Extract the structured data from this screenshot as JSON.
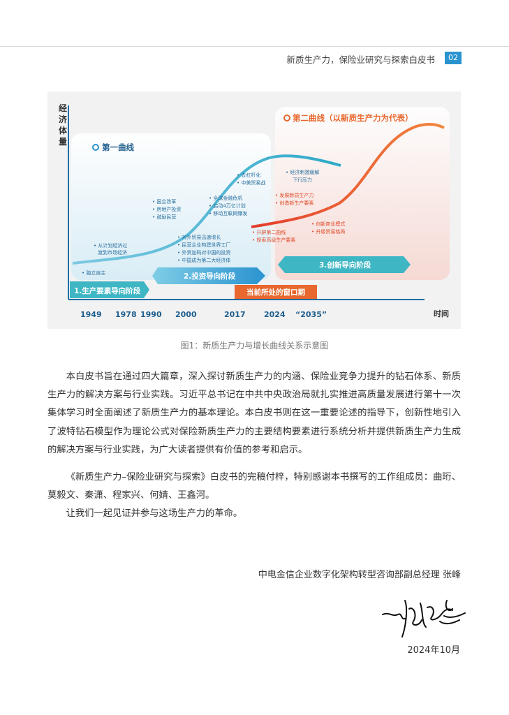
{
  "header": {
    "title": "新质生产力，保险业研究与探索白皮书",
    "page": "02"
  },
  "figure": {
    "y_label": "经济体量",
    "x_label": "时间",
    "x_ticks": [
      "1949",
      "1978",
      "1990",
      "2000",
      "2017",
      "2024",
      "“2035”"
    ],
    "curve1_label": "第一曲线",
    "curve2_label": "第二曲线（以新质生产力为代表）",
    "notes": {
      "n1": "• 独立自主",
      "n2a": "• 从计划经济过",
      "n2b": "渡到市场经济",
      "n3a": "• 国企改革",
      "n3b": "• 房地产投资",
      "n3c": "• 鼓励民营",
      "n4a": "• 对外贸易迅速增长",
      "n4b": "• 民营企业构建世界工厂",
      "n4c": "• 外资加码对中国的投资",
      "n4d": "• 中国成为第二大经济体",
      "n5a": "• 全球金融危机",
      "n5b": "• 启动4万亿计划",
      "n5c": "• 移动互联网爆发",
      "n6a": "• 去杠杆化",
      "n6b": "• 中美贸易战",
      "n7a": "• 经济刺激缓解",
      "n7b": "下行压力",
      "n8a": "• 发展新质生产力",
      "n8b": "• 创造新生产要素",
      "n9a": "• 开辟第二曲线",
      "n9b": "• 探索高级生产要素",
      "n10a": "• 创新商业模式",
      "n10b": "• 升级贸易格局"
    },
    "stages": {
      "s1": "1.生产要素导向阶段",
      "s2": "2.投资导向阶段",
      "s3": "3.创新导向阶段",
      "window": "当前所处的窗口期"
    },
    "colors": {
      "blue": "#2a93cf",
      "orange": "#e8682e",
      "teal": "#3fb6c4"
    }
  },
  "caption": "图1：新质生产力与增长曲线关系示意图",
  "body": {
    "p1": "本白皮书旨在通过四大篇章，深入探讨新质生产力的内涵、保险业竞争力提升的钻石体系、新质生产力的解决方案与行业实践。习近平总书记在中共中央政治局就扎实推进高质量发展进行第十一次集体学习时全面阐述了新质生产力的基本理论。本白皮书则在这一重要论述的指导下，创新性地引入了波特钻石模型作为理论公式对保险新质生产力的主要结构要素进行系统分析并提供新质生产力生成的解决方案与行业实践，为广大读者提供有价值的参考和启示。",
    "p2": "《新质生产力–保险业研究与探索》白皮书的完稿付梓，特别感谢本书撰写的工作组成员：曲珩、莫毅文、秦潇、程家兴、何婧、王鑫河。",
    "p3": "让我们一起见证并参与这场生产力的革命。"
  },
  "signature": {
    "name_line": "中电金信企业数字化架构转型咨询部副总经理 张峰",
    "date": "2024年10月"
  }
}
